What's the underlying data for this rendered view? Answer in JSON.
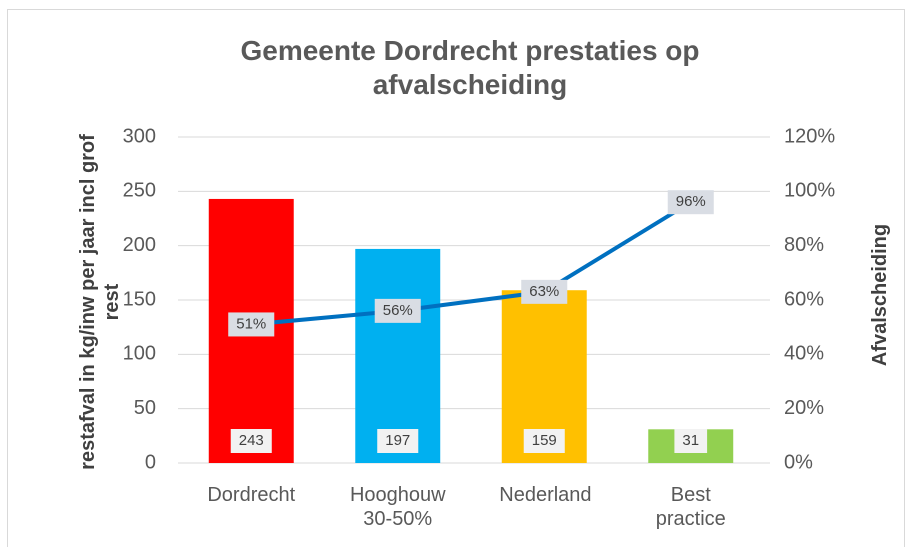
{
  "chart_data": {
    "type": "bar_line",
    "title": "Gemeente Dordrecht prestaties op afvalscheiding",
    "y_label": "restafval in kg/inw per jaar incl grof rest",
    "y2_label": "Afvalscheiding",
    "categories": [
      "Dordrecht",
      "Hooghouw 30-50%",
      "Nederland",
      "Best practice"
    ],
    "series": [
      {
        "type": "bar",
        "colors": [
          "#ff0000",
          "#00b0f0",
          "#ffc000",
          "#92d050"
        ],
        "values": [
          243,
          197,
          159,
          31
        ]
      },
      {
        "type": "line",
        "axis": "y2",
        "color": "#0070c0",
        "values": [
          51,
          56,
          63,
          96
        ],
        "value_labels": [
          "51%",
          "56%",
          "63%",
          "96%"
        ]
      }
    ],
    "ylim": [
      0,
      300
    ],
    "yticks": [
      0,
      50,
      100,
      150,
      200,
      250,
      300
    ],
    "y2lim": [
      0,
      120
    ],
    "y2ticks": [
      {
        "value": 0,
        "label": "0%"
      },
      {
        "value": 20,
        "label": "20%"
      },
      {
        "value": 40,
        "label": "40%"
      },
      {
        "value": 60,
        "label": "60%"
      },
      {
        "value": 80,
        "label": "80%"
      },
      {
        "value": 100,
        "label": "100%"
      },
      {
        "value": 120,
        "label": "120%"
      }
    ],
    "grid": true
  }
}
